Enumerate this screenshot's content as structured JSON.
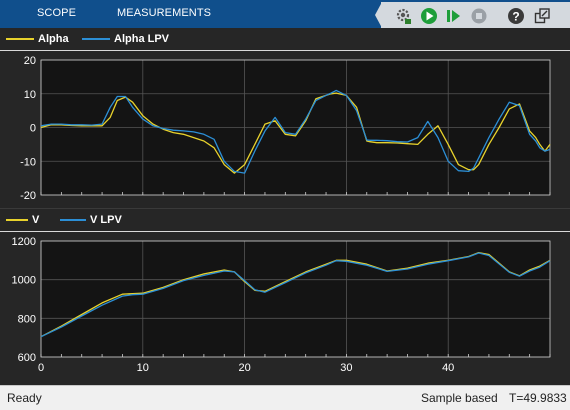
{
  "header": {
    "tabs": [
      {
        "label": "SCOPE"
      },
      {
        "label": "MEASUREMENTS"
      }
    ],
    "toolbar": {
      "settings_icon": "gear-icon",
      "run_icon": "run-icon",
      "step_icon": "step-forward-icon",
      "stop_icon": "stop-icon",
      "help_icon": "help-icon",
      "undock_icon": "undock-icon"
    }
  },
  "colors": {
    "series_a": "#e8d22c",
    "series_b": "#2c8fd6",
    "plot_bg": "#141414",
    "grid": "#555555",
    "header": "#104f8c"
  },
  "chart_data": [
    {
      "type": "line",
      "title": "",
      "xlabel": "",
      "ylabel": "",
      "xlim": [
        0,
        50
      ],
      "ylim": [
        -20,
        20
      ],
      "yticks": [
        20,
        10,
        0,
        -10,
        -20
      ],
      "grid": true,
      "legend_placement": "top-left",
      "series": [
        {
          "name": "Alpha",
          "color": "#e8d22c",
          "x": [
            0,
            1,
            2,
            3,
            4,
            5,
            6,
            6.8,
            7.5,
            8.3,
            9,
            10,
            11,
            12,
            13,
            14,
            15,
            16,
            17,
            18,
            19,
            20,
            21,
            22,
            23,
            24,
            25,
            26,
            27,
            28,
            28.5,
            29,
            30,
            31,
            32,
            32.3,
            33,
            34,
            35,
            36,
            37,
            38,
            39,
            40,
            41,
            42,
            42.5,
            43,
            44,
            45,
            46,
            47,
            48,
            48.6,
            49,
            49.5,
            50
          ],
          "y": [
            0,
            0.8,
            0.8,
            0.6,
            0.5,
            0.5,
            0.5,
            3,
            8,
            9,
            7.5,
            3.5,
            1,
            -0.5,
            -1.5,
            -2,
            -3,
            -4,
            -6,
            -11,
            -13.5,
            -11,
            -5,
            1,
            2,
            -2,
            -2.5,
            2,
            8.5,
            9.5,
            10,
            10.2,
            9.5,
            6,
            -4,
            -4.2,
            -4.5,
            -4.5,
            -4.6,
            -4.8,
            -5,
            -2,
            0.5,
            -5,
            -11,
            -12.5,
            -12.5,
            -11,
            -5,
            0,
            5.5,
            7,
            -1,
            -3,
            -5,
            -7,
            -5
          ]
        },
        {
          "name": "Alpha LPV",
          "color": "#2c8fd6",
          "x": [
            0,
            1,
            2,
            3,
            4,
            5,
            6,
            6.8,
            7.5,
            8.3,
            9,
            10,
            11,
            12,
            13,
            14,
            15,
            16,
            17,
            18,
            19,
            20,
            21,
            22,
            23,
            24,
            25,
            26,
            27,
            28,
            28.5,
            29,
            30,
            31,
            32,
            32.3,
            33,
            34,
            35,
            36,
            37,
            38,
            39,
            40,
            41,
            42,
            42.5,
            43,
            44,
            45,
            46,
            47,
            48,
            48.6,
            49,
            49.5,
            50
          ],
          "y": [
            0.5,
            1,
            1,
            0.8,
            0.8,
            0.7,
            1,
            6,
            9.2,
            9.2,
            6,
            2.5,
            0.5,
            -0.3,
            -0.8,
            -1,
            -1.3,
            -2,
            -3.5,
            -10,
            -13,
            -13.5,
            -7,
            -1,
            3,
            -1.5,
            -2,
            2.5,
            8,
            9.5,
            10.2,
            11,
            9.5,
            5,
            -3.7,
            -3.8,
            -3.8,
            -3.9,
            -4.2,
            -4.3,
            -3,
            1.8,
            -3,
            -10,
            -12.8,
            -13,
            -12,
            -9,
            -3,
            2.5,
            7.5,
            6.5,
            -2,
            -4,
            -6,
            -7,
            -6.5
          ]
        }
      ]
    },
    {
      "type": "line",
      "title": "",
      "xlabel": "",
      "ylabel": "",
      "xlim": [
        0,
        50
      ],
      "ylim": [
        600,
        1200
      ],
      "xticks": [
        0,
        10,
        20,
        30,
        40
      ],
      "yticks": [
        1200,
        1000,
        800,
        600
      ],
      "grid": true,
      "legend_placement": "top-left",
      "series": [
        {
          "name": "V",
          "color": "#e8d22c",
          "x": [
            0,
            2,
            4,
            6,
            8,
            9,
            10,
            12,
            14,
            16,
            18,
            19,
            20,
            21,
            22,
            24,
            26,
            28,
            29,
            30,
            32,
            34,
            36,
            38,
            40,
            42,
            43,
            44,
            46,
            47,
            48,
            49,
            50
          ],
          "y": [
            705,
            760,
            820,
            880,
            925,
            928,
            930,
            960,
            1000,
            1030,
            1050,
            1040,
            990,
            945,
            940,
            990,
            1040,
            1080,
            1100,
            1100,
            1080,
            1045,
            1060,
            1085,
            1100,
            1120,
            1140,
            1130,
            1040,
            1020,
            1050,
            1070,
            1100
          ]
        },
        {
          "name": "V LPV",
          "color": "#2c8fd6",
          "x": [
            0,
            2,
            4,
            6,
            8,
            9,
            10,
            12,
            14,
            16,
            18,
            19,
            20,
            21,
            22,
            24,
            26,
            28,
            29,
            30,
            32,
            34,
            36,
            38,
            40,
            42,
            43,
            44,
            46,
            47,
            48,
            49,
            50
          ],
          "y": [
            705,
            755,
            812,
            868,
            915,
            922,
            925,
            955,
            995,
            1022,
            1045,
            1040,
            995,
            948,
            935,
            985,
            1035,
            1075,
            1098,
            1095,
            1075,
            1043,
            1055,
            1080,
            1098,
            1118,
            1138,
            1125,
            1038,
            1018,
            1045,
            1065,
            1098
          ]
        }
      ]
    }
  ],
  "status": {
    "ready": "Ready",
    "sample": "Sample based",
    "time": "T=49.9833"
  }
}
